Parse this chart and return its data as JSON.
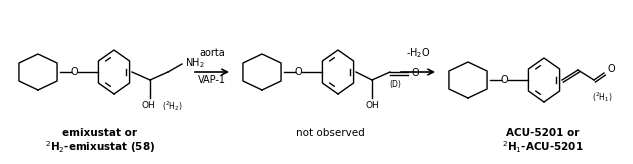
{
  "figsize": [
    6.33,
    1.64
  ],
  "dpi": 100,
  "bg_color": "#ffffff",
  "text_color": "#000000",
  "lw": 1.0,
  "labels": {
    "compound1_line1": "emixustat or",
    "compound1_line2": "$^{2}$H$_{2}$-emixustat (58)",
    "compound2": "not observed",
    "compound3_line1": "ACU-5201 or",
    "compound3_line2": "$^{2}$H$_{1}$-ACU-5201",
    "arrow1_top": "aorta",
    "arrow1_bot": "VAP-1",
    "arrow2_label": "-H$_{2}$O"
  }
}
